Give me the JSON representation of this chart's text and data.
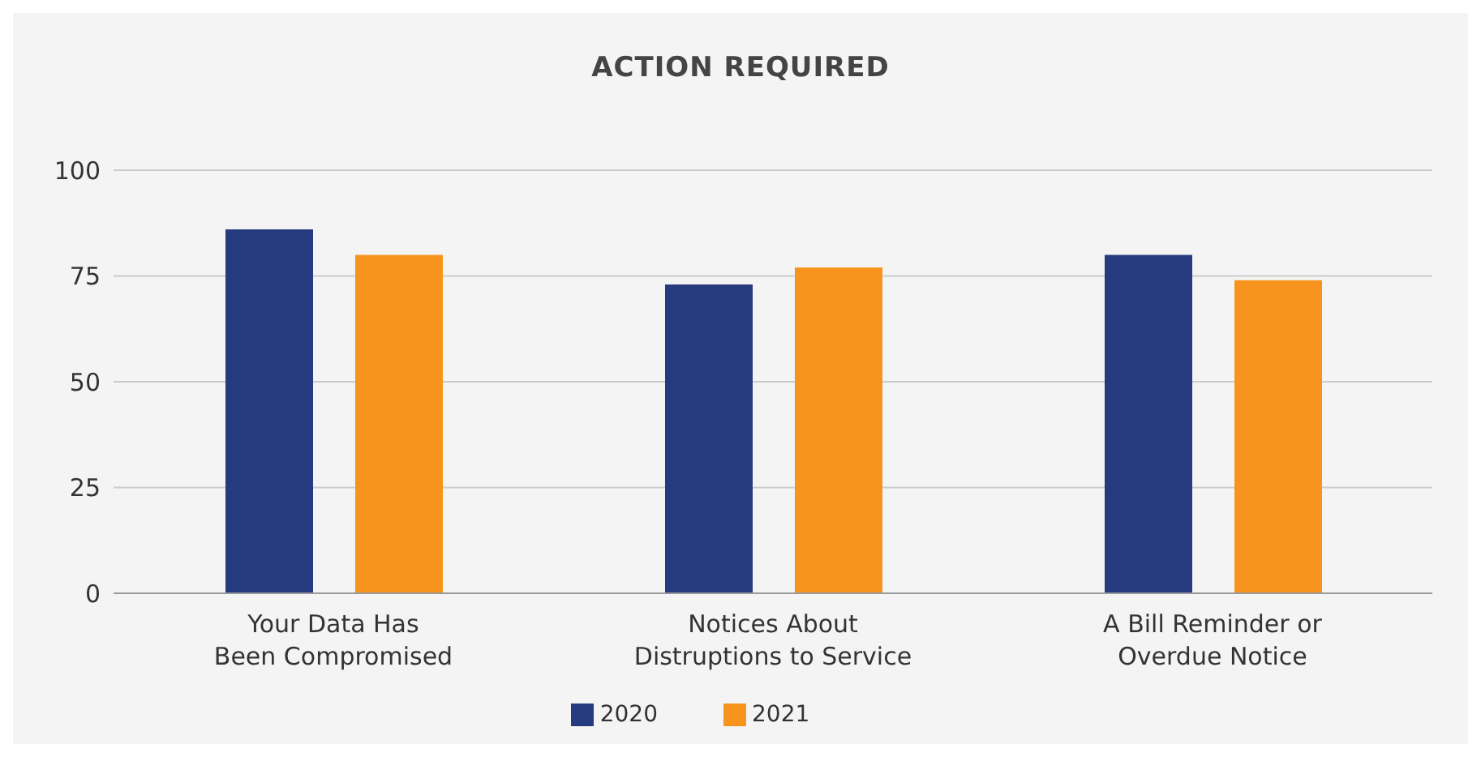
{
  "chart_data": {
    "type": "bar",
    "title": "ACTION REQUIRED",
    "categories": [
      "Your Data Has\nBeen Compromised",
      "Notices About\nDistruptions to Service",
      "A Bill Reminder or\nOverdue Notice"
    ],
    "series": [
      {
        "name": "2020",
        "color": "#253a7f",
        "values": [
          86,
          73,
          80
        ]
      },
      {
        "name": "2021",
        "color": "#f7941d",
        "values": [
          80,
          77,
          74
        ]
      }
    ],
    "ylim": [
      0,
      100
    ],
    "yticks": [
      0,
      25,
      50,
      75,
      100
    ],
    "grid": "y",
    "legend": "bottom"
  }
}
